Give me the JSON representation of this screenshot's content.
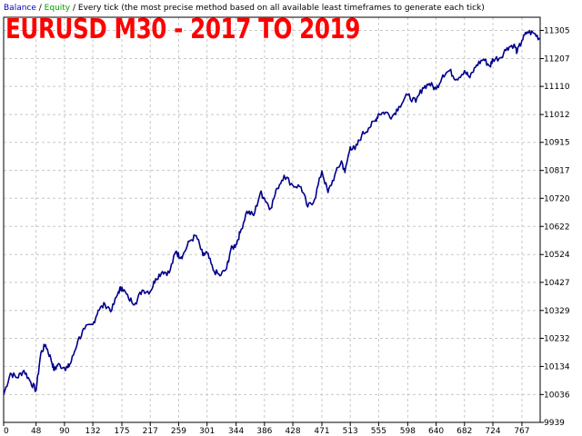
{
  "legend": {
    "balance": "Balance",
    "sep": " / ",
    "equity": "Equity",
    "rest": " / Every tick (the most precise method based on all available least timeframes to generate each tick)"
  },
  "colors": {
    "balance": "#00008b",
    "equity": "#00a000",
    "title": "#ff0000",
    "grid": "#c8c8c8",
    "axis": "#000000"
  },
  "chart_data": {
    "type": "line",
    "title": "EURUSD M30 - 2017 TO 2019",
    "xlabel": "",
    "ylabel": "",
    "xlim": [
      0,
      794
    ],
    "ylim": [
      9939,
      11351
    ],
    "x_ticks": [
      "0",
      "48",
      "90",
      "132",
      "175",
      "217",
      "259",
      "301",
      "344",
      "386",
      "428",
      "471",
      "513",
      "555",
      "598",
      "640",
      "682",
      "724",
      "767"
    ],
    "y_ticks": [
      "11305",
      "11207",
      "11110",
      "11012",
      "10915",
      "10817",
      "10720",
      "10622",
      "10524",
      "10427",
      "10329",
      "10232",
      "10134",
      "10036",
      "9939"
    ],
    "grid": true,
    "series": [
      {
        "name": "Balance",
        "x": [
          0,
          10,
          20,
          30,
          40,
          48,
          55,
          62,
          70,
          75,
          80,
          90,
          95,
          100,
          110,
          120,
          132,
          140,
          150,
          160,
          170,
          175,
          185,
          195,
          205,
          217,
          225,
          235,
          245,
          255,
          259,
          265,
          275,
          285,
          295,
          301,
          310,
          320,
          330,
          336,
          344,
          350,
          360,
          370,
          380,
          386,
          395,
          405,
          415,
          428,
          440,
          450,
          460,
          471,
          480,
          490,
          500,
          505,
          513,
          520,
          530,
          540,
          550,
          555,
          565,
          575,
          585,
          598,
          610,
          620,
          630,
          640,
          650,
          660,
          670,
          682,
          690,
          700,
          710,
          720,
          724,
          735,
          745,
          755,
          760,
          767,
          775,
          785,
          794
        ],
        "values": [
          10036,
          10110,
          10095,
          10120,
          10080,
          10050,
          10180,
          10210,
          10160,
          10120,
          10140,
          10130,
          10130,
          10150,
          10225,
          10265,
          10280,
          10330,
          10350,
          10330,
          10395,
          10410,
          10370,
          10355,
          10400,
          10395,
          10440,
          10465,
          10460,
          10535,
          10520,
          10520,
          10570,
          10590,
          10520,
          10530,
          10470,
          10450,
          10475,
          10540,
          10560,
          10600,
          10675,
          10660,
          10740,
          10720,
          10685,
          10755,
          10800,
          10765,
          10760,
          10690,
          10715,
          10815,
          10740,
          10800,
          10850,
          10810,
          10900,
          10890,
          10940,
          10965,
          10990,
          11015,
          11020,
          11005,
          11040,
          11080,
          11055,
          11105,
          11120,
          11100,
          11150,
          11165,
          11135,
          11165,
          11140,
          11185,
          11205,
          11180,
          11205,
          11210,
          11245,
          11255,
          11230,
          11270,
          11300,
          11295,
          11275
        ]
      }
    ]
  }
}
